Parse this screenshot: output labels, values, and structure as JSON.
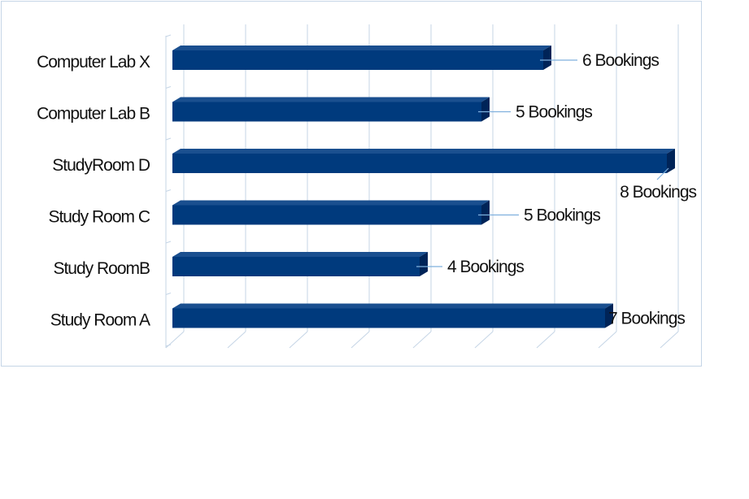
{
  "chart_data": {
    "type": "bar",
    "orientation": "horizontal",
    "title": "",
    "xlabel": "",
    "ylabel": "",
    "xlim": [
      0,
      8
    ],
    "grid": true,
    "legend": "none",
    "categories": [
      "Computer Lab X",
      "Computer Lab B",
      "StudyRoom D",
      "Study Room C",
      "Study RoomB",
      "Study Room A"
    ],
    "values": [
      6,
      5,
      8,
      5,
      4,
      7
    ],
    "data_labels": [
      "6 Bookings",
      "5 Bookings",
      "8 Bookings",
      "5 Bookings",
      "4 Bookings",
      "7 Bookings"
    ],
    "colors": {
      "bar_front": "#003a7d",
      "bar_top": "#1a4f8f",
      "bar_side": "#002458",
      "grid": "#c5d5e6",
      "leader": "#7fb0dd"
    }
  }
}
